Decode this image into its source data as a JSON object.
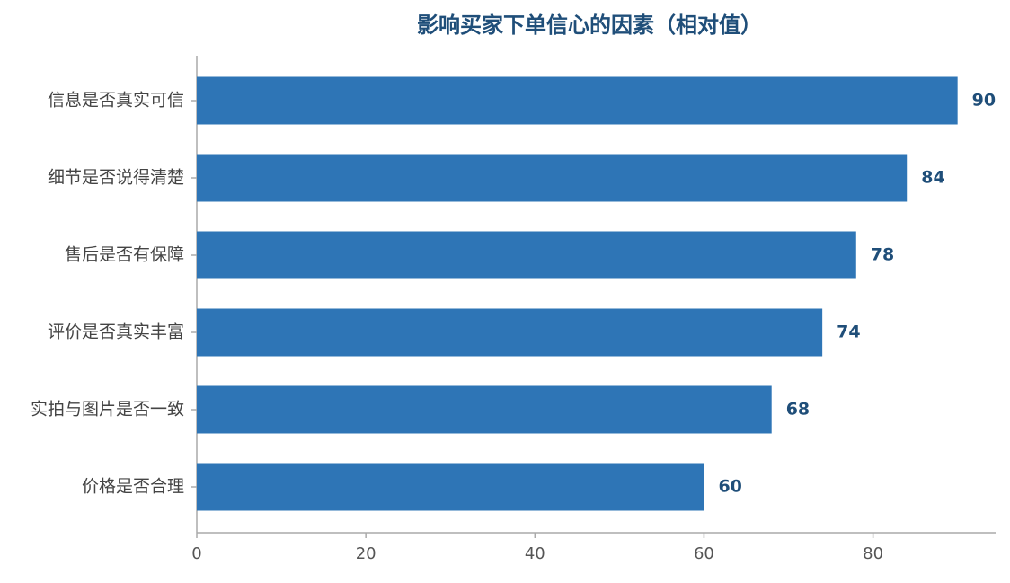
{
  "chart_data": {
    "type": "barh",
    "title": "影响买家下单信心的因素（相对值）",
    "categories": [
      "信息是否真实可信",
      "细节是否说得清楚",
      "售后是否有保障",
      "评价是否真实丰富",
      "实拍与图片是否一致",
      "价格是否合理"
    ],
    "values": [
      90,
      84,
      78,
      74,
      68,
      60
    ],
    "color": "#2e75b6",
    "xlim": [
      0,
      94.5
    ],
    "xticks": [
      0,
      20,
      40,
      60,
      80
    ],
    "grid": false
  }
}
